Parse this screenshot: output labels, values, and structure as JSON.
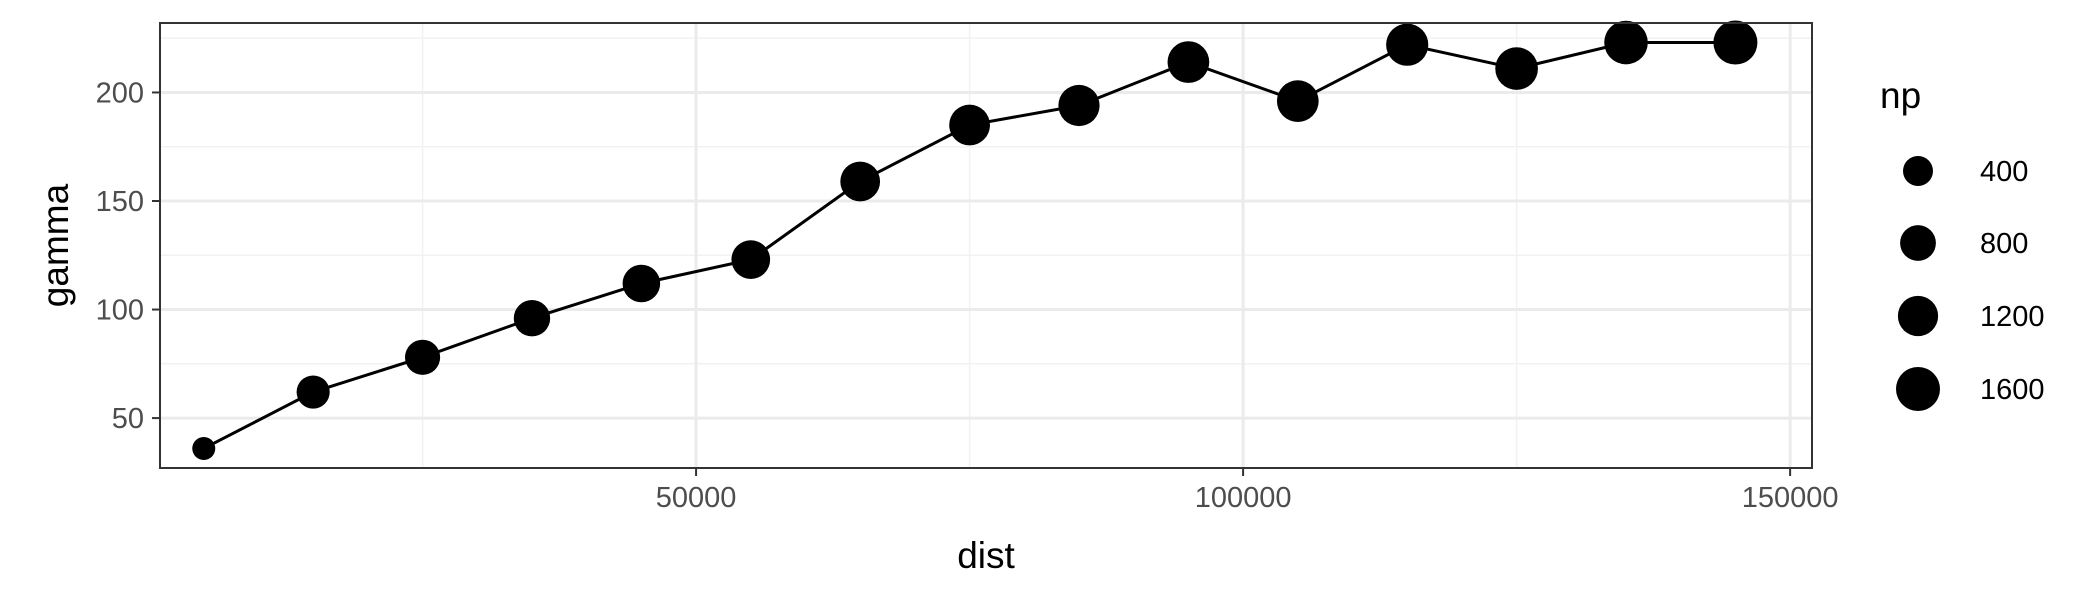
{
  "chart_data": {
    "type": "scatter",
    "title": "",
    "xlabel": "dist",
    "ylabel": "gamma",
    "xlim": [
      1000,
      152000
    ],
    "ylim": [
      27,
      232
    ],
    "x_ticks": [
      50000,
      100000,
      150000
    ],
    "x_tick_labels": [
      "50000",
      "100000",
      "150000"
    ],
    "y_ticks": [
      50,
      100,
      150,
      200
    ],
    "y_tick_labels": [
      "50",
      "100",
      "150",
      "200"
    ],
    "grid": true,
    "connected": true,
    "size_variable": "np",
    "legend": {
      "title": "np",
      "placement": "right",
      "sizes": [
        400,
        800,
        1200,
        1600
      ],
      "labels": [
        "400",
        "800",
        "1200",
        "1600"
      ]
    },
    "points": [
      {
        "x": 5000,
        "y": 36,
        "np": 100
      },
      {
        "x": 15000,
        "y": 62,
        "np": 600
      },
      {
        "x": 25000,
        "y": 78,
        "np": 750
      },
      {
        "x": 35000,
        "y": 96,
        "np": 850
      },
      {
        "x": 45000,
        "y": 112,
        "np": 950
      },
      {
        "x": 55000,
        "y": 123,
        "np": 1050
      },
      {
        "x": 65000,
        "y": 159,
        "np": 1150
      },
      {
        "x": 75000,
        "y": 185,
        "np": 1250
      },
      {
        "x": 85000,
        "y": 194,
        "np": 1300
      },
      {
        "x": 95000,
        "y": 214,
        "np": 1350
      },
      {
        "x": 105000,
        "y": 196,
        "np": 1350
      },
      {
        "x": 115000,
        "y": 222,
        "np": 1400
      },
      {
        "x": 125000,
        "y": 211,
        "np": 1450
      },
      {
        "x": 135000,
        "y": 223,
        "np": 1550
      },
      {
        "x": 145000,
        "y": 223,
        "np": 1600
      }
    ],
    "colors": {
      "point": "#000000",
      "line": "#000000",
      "panel_border": "#333333",
      "grid_major": "#ebebeb",
      "grid_minor": "#f2f2f2"
    }
  }
}
